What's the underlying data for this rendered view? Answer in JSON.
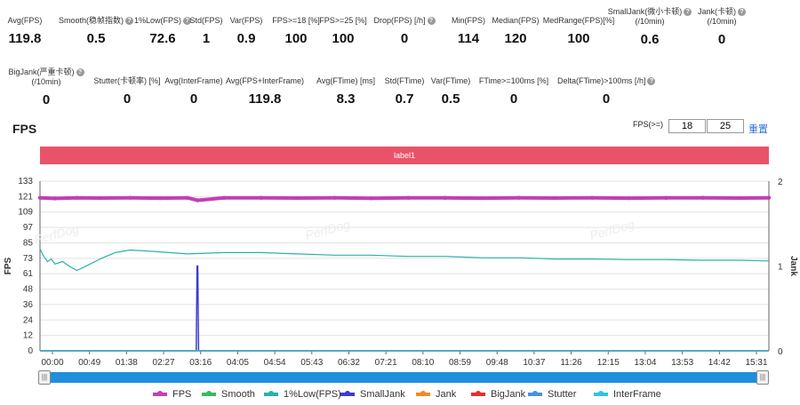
{
  "stats_row1": [
    {
      "label": "Avg(FPS)",
      "value": "119.8",
      "help": false
    },
    {
      "label": "Smooth(稳帧指数)",
      "value": "0.5",
      "help": true
    },
    {
      "label": "1%Low(FPS)",
      "value": "72.6",
      "help": true
    },
    {
      "label": "Std(FPS)",
      "value": "1",
      "help": false
    },
    {
      "label": "Var(FPS)",
      "value": "0.9",
      "help": false
    },
    {
      "label": "FPS>=18 [%]",
      "value": "100",
      "help": false
    },
    {
      "label": "FPS>=25 [%]",
      "value": "100",
      "help": false
    },
    {
      "label": "Drop(FPS) [/h]",
      "value": "0",
      "help": true
    },
    {
      "label": "Min(FPS)",
      "value": "114",
      "help": false
    },
    {
      "label": "Median(FPS)",
      "value": "120",
      "help": false
    },
    {
      "label": "MedRange(FPS)[%]",
      "value": "100",
      "help": false
    },
    {
      "label": "SmallJank(微小卡顿)",
      "label2": "(/10min)",
      "value": "0.6",
      "help": true
    },
    {
      "label": "Jank(卡顿)",
      "label2": "(/10min)",
      "value": "0",
      "help": true
    }
  ],
  "stats_row2": [
    {
      "label": "BigJank(严重卡顿)",
      "label2": "(/10min)",
      "value": "0",
      "help": true
    },
    {
      "label": "Stutter(卡顿率) [%]",
      "value": "0",
      "help": false
    },
    {
      "label": "Avg(InterFrame)",
      "value": "0",
      "help": false
    },
    {
      "label": "Avg(FPS+InterFrame)",
      "value": "119.8",
      "help": false
    },
    {
      "label": "Avg(FTime) [ms]",
      "value": "8.3",
      "help": false
    },
    {
      "label": "Std(FTime)",
      "value": "0.7",
      "help": false
    },
    {
      "label": "Var(FTime)",
      "value": "0.5",
      "help": false
    },
    {
      "label": "FTime>=100ms [%]",
      "value": "0",
      "help": false
    },
    {
      "label": "Delta(FTime)>100ms [/h]",
      "value": "0",
      "help": true
    }
  ],
  "section_title": "FPS",
  "threshold": {
    "label": "FPS(>=)",
    "low": "18",
    "high": "25",
    "reset": "重置"
  },
  "label_bar": "label1",
  "watermark": "PerfDog",
  "colors": {
    "fps": "#c23fb5",
    "smooth": "#3fb56a",
    "low1": "#2ab3a6",
    "smalljank": "#3b3ccf",
    "jank": "#f08a24",
    "bigjank": "#e03030",
    "stutter": "#4a90e2",
    "interframe": "#2fc6d8",
    "labelbar": "#e9536a"
  },
  "chart_data": {
    "type": "line",
    "ylabel": "FPS",
    "y2label": "Jank",
    "ylim": [
      0,
      133
    ],
    "yticks": [
      "0",
      "12",
      "24",
      "36",
      "48",
      "61",
      "73",
      "85",
      "97",
      "109",
      "121",
      "133"
    ],
    "y2lim": [
      0,
      2
    ],
    "y2ticks": [
      "0",
      "1",
      "2"
    ],
    "xticks": [
      "00:00",
      "00:49",
      "01:38",
      "02:27",
      "03:16",
      "04:05",
      "04:54",
      "05:43",
      "06:32",
      "07:21",
      "08:10",
      "08:59",
      "09:48",
      "10:37",
      "11:26",
      "12:15",
      "13:04",
      "13:53",
      "14:42",
      "15:31"
    ],
    "x_range_seconds": [
      0,
      970
    ],
    "series": [
      {
        "name": "FPS",
        "key": "fps",
        "x": [
          0,
          20,
          49,
          80,
          120,
          160,
          196,
          210,
          245,
          294,
          343,
          392,
          441,
          490,
          539,
          588,
          637,
          686,
          735,
          784,
          833,
          882,
          931,
          970
        ],
        "y": [
          120,
          119.5,
          120,
          119.8,
          120,
          119.7,
          120,
          118,
          119.9,
          120,
          119.8,
          120,
          119.6,
          120,
          119.9,
          119.7,
          120,
          119.8,
          120,
          119.7,
          119.9,
          120,
          119.8,
          120
        ]
      },
      {
        "name": "Smooth",
        "key": "smooth",
        "x": [
          0,
          970
        ],
        "y": [
          0,
          0
        ]
      },
      {
        "name": "1%Low(FPS)",
        "key": "low1",
        "x": [
          0,
          5,
          10,
          15,
          20,
          30,
          40,
          49,
          60,
          80,
          100,
          120,
          150,
          196,
          245,
          294,
          343,
          392,
          441,
          490,
          539,
          588,
          637,
          686,
          735,
          784,
          833,
          882,
          931,
          970
        ],
        "y": [
          80,
          74,
          70,
          72,
          68,
          70,
          66,
          63,
          66,
          72,
          77,
          79,
          78,
          76,
          77,
          77,
          76,
          75,
          75,
          74,
          74,
          73,
          73,
          72,
          72,
          71.5,
          71.5,
          71,
          71,
          70.5
        ]
      },
      {
        "name": "SmallJank",
        "key": "smalljank",
        "x": [
          0,
          208,
          209,
          210,
          211,
          970
        ],
        "y2": [
          0,
          0,
          1,
          1,
          0,
          0
        ]
      },
      {
        "name": "Jank",
        "key": "jank",
        "x": [
          0,
          970
        ],
        "y2": [
          0,
          0
        ]
      },
      {
        "name": "BigJank",
        "key": "bigjank",
        "x": [
          0,
          970
        ],
        "y2": [
          0,
          0
        ]
      },
      {
        "name": "Stutter",
        "key": "stutter",
        "x": [
          0,
          970
        ],
        "y2": [
          0,
          0
        ]
      },
      {
        "name": "InterFrame",
        "key": "interframe",
        "x": [
          0,
          970
        ],
        "y": [
          0,
          0
        ]
      }
    ]
  }
}
